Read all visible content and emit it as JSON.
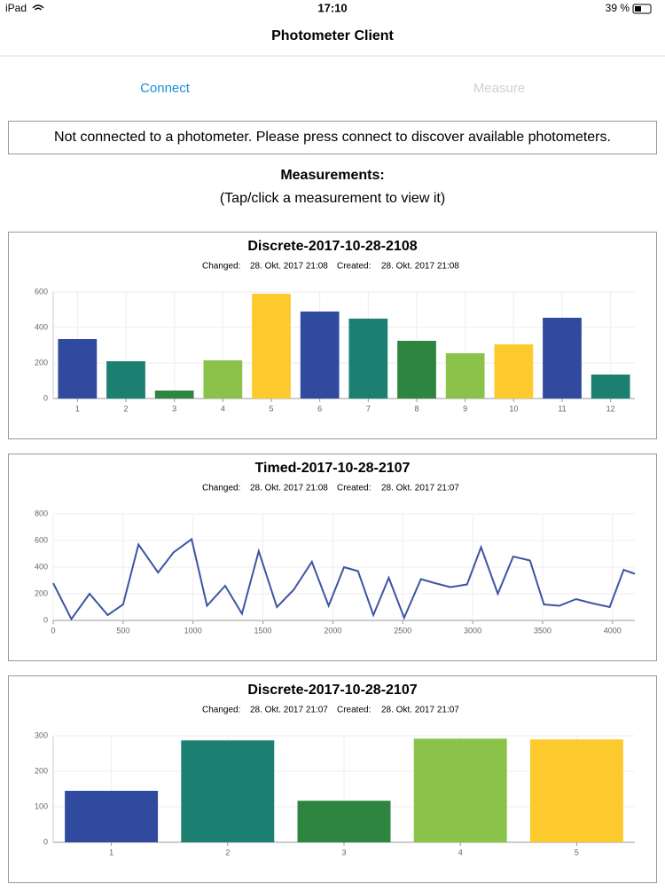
{
  "status_bar": {
    "device": "iPad",
    "time": "17:10",
    "battery": "39 %"
  },
  "header": {
    "title": "Photometer Client"
  },
  "toolbar": {
    "buttons": [
      "Connect",
      "Measure"
    ]
  },
  "message": "Not connected to a photometer. Please press connect to discover available photometers.",
  "measurements": {
    "heading": "Measurements:",
    "hint": "(Tap/click a measurement to view it)"
  },
  "chart_data": [
    {
      "type": "bar",
      "title": "Discrete-2017-10-28-2108",
      "changed_label": "Changed:",
      "changed": "28. Okt. 2017 21:08",
      "created_label": "Created:",
      "created": "28. Okt. 2017 21:08",
      "categories": [
        "1",
        "2",
        "3",
        "4",
        "5",
        "6",
        "7",
        "8",
        "9",
        "10",
        "11",
        "12"
      ],
      "values": [
        335,
        210,
        45,
        215,
        590,
        490,
        450,
        325,
        255,
        305,
        455,
        135
      ],
      "colors": [
        "#2f4a9e",
        "#1b7f72",
        "#2e8540",
        "#8bc34a",
        "#fdca2e",
        "#2f4a9e",
        "#1b7f72",
        "#2e8540",
        "#8bc34a",
        "#fdca2e",
        "#2f4a9e",
        "#1b7f72"
      ],
      "ylim": [
        0,
        600
      ],
      "yticks": [
        0,
        200,
        400,
        600
      ],
      "grid": true
    },
    {
      "type": "line",
      "title": "Timed-2017-10-28-2107",
      "changed_label": "Changed:",
      "changed": "28. Okt. 2017 21:08",
      "created_label": "Created:",
      "created": "28. Okt. 2017 21:07",
      "x": [
        0,
        130,
        260,
        390,
        500,
        610,
        750,
        860,
        990,
        1100,
        1230,
        1350,
        1470,
        1600,
        1720,
        1850,
        1970,
        2080,
        2180,
        2290,
        2400,
        2510,
        2630,
        2730,
        2840,
        2960,
        3060,
        3180,
        3290,
        3410,
        3510,
        3620,
        3740,
        3850,
        3980,
        4080,
        4160
      ],
      "values": [
        280,
        10,
        200,
        40,
        120,
        570,
        360,
        510,
        610,
        110,
        260,
        50,
        520,
        100,
        230,
        440,
        110,
        400,
        370,
        40,
        320,
        20,
        310,
        280,
        250,
        270,
        550,
        200,
        480,
        450,
        120,
        110,
        160,
        130,
        100,
        380,
        350
      ],
      "color": "#3d55a3",
      "xlim": [
        0,
        4160
      ],
      "xticks": [
        0,
        500,
        1000,
        1500,
        2000,
        2500,
        3000,
        3500,
        4000
      ],
      "ylim": [
        0,
        800
      ],
      "yticks": [
        0,
        200,
        400,
        600,
        800
      ],
      "grid": true
    },
    {
      "type": "bar",
      "title": "Discrete-2017-10-28-2107",
      "changed_label": "Changed:",
      "changed": "28. Okt. 2017 21:07",
      "created_label": "Created:",
      "created": "28. Okt. 2017 21:07",
      "categories": [
        "1",
        "2",
        "3",
        "4",
        "5"
      ],
      "values": [
        145,
        287,
        117,
        292,
        290
      ],
      "colors": [
        "#2f4a9e",
        "#1b7f72",
        "#2e8540",
        "#8bc34a",
        "#fdca2e"
      ],
      "ylim": [
        0,
        300
      ],
      "yticks": [
        0,
        100,
        200,
        300
      ],
      "grid": true
    }
  ]
}
